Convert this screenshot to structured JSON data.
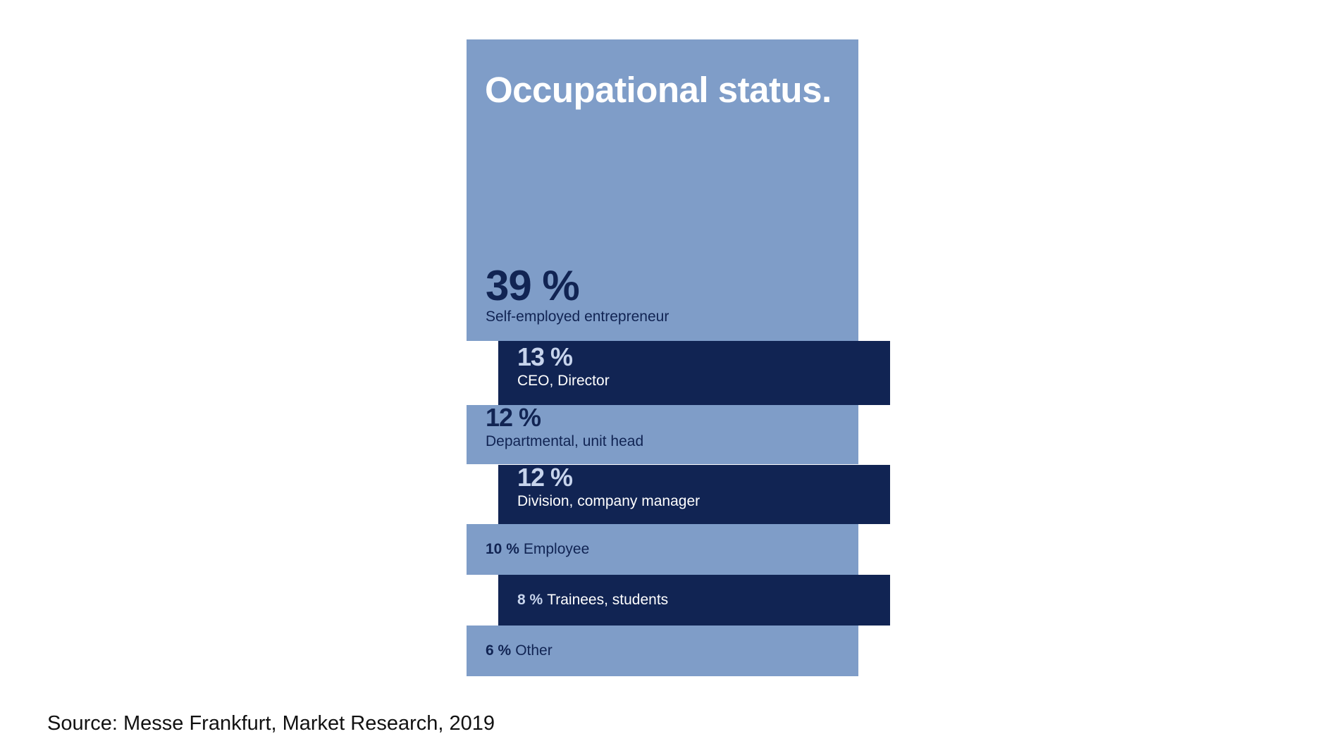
{
  "chart_data": {
    "type": "bar",
    "title": "Occupational status.",
    "unit": "%",
    "categories": [
      "Self-employed entrepreneur",
      "CEO, Director",
      "Departmental, unit head",
      "Division, company manager",
      "Employee",
      "Trainees, students",
      "Other"
    ],
    "values": [
      39,
      13,
      12,
      12,
      10,
      8,
      6
    ],
    "value_labels": [
      "39 %",
      "13 %",
      "12 %",
      "12 %",
      "10 %",
      "8 %",
      "6 %"
    ],
    "inline_label": [
      false,
      false,
      false,
      false,
      true,
      true,
      true
    ],
    "grid": false
  },
  "source": "Source: Messe Frankfurt, Market Research, 2019",
  "colors": {
    "light": "#7f9dc8",
    "dark": "#112453",
    "text_on_light": "#112453",
    "text_on_dark": "#ffffff",
    "pct_on_dark": "#c7d4ec"
  }
}
